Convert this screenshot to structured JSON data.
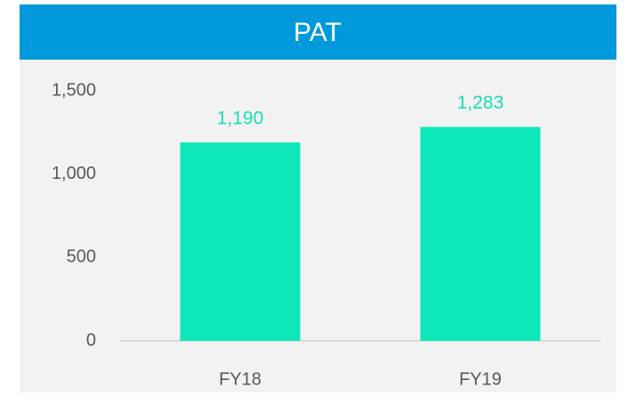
{
  "chart_data": {
    "type": "bar",
    "title": "PAT",
    "categories": [
      "FY18",
      "FY19"
    ],
    "values": [
      1190,
      1283
    ],
    "value_labels": [
      "1,190",
      "1,283"
    ],
    "color": "#0ee8b8",
    "label_color": "#17dfae",
    "ylim": [
      0,
      1500
    ],
    "yticks": [
      0,
      500,
      {
        "value": 1000,
        "label": "1,000"
      },
      {
        "value": 1500,
        "label": "1,500"
      }
    ],
    "grid": false
  }
}
